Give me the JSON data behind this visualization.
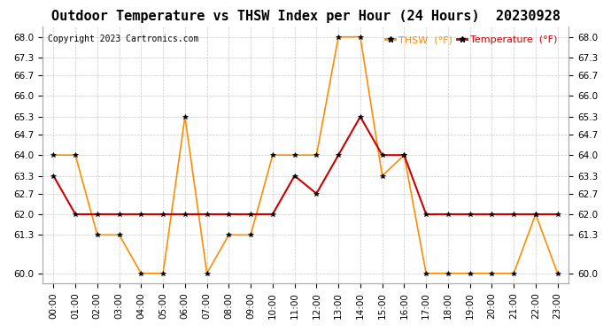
{
  "title": "Outdoor Temperature vs THSW Index per Hour (24 Hours)  20230928",
  "copyright": "Copyright 2023 Cartronics.com",
  "legend_thsw": "THSW  (°F)",
  "legend_temp": "Temperature  (°F)",
  "hours": [
    0,
    1,
    2,
    3,
    4,
    5,
    6,
    7,
    8,
    9,
    10,
    11,
    12,
    13,
    14,
    15,
    16,
    17,
    18,
    19,
    20,
    21,
    22,
    23
  ],
  "thsw": [
    64.0,
    64.0,
    61.3,
    61.3,
    60.0,
    60.0,
    65.3,
    60.0,
    61.3,
    61.3,
    64.0,
    64.0,
    64.0,
    68.0,
    68.0,
    63.3,
    64.0,
    60.0,
    60.0,
    60.0,
    60.0,
    60.0,
    62.0,
    60.0
  ],
  "temperature": [
    63.3,
    62.0,
    62.0,
    62.0,
    62.0,
    62.0,
    62.0,
    62.0,
    62.0,
    62.0,
    62.0,
    63.3,
    62.7,
    64.0,
    65.3,
    64.0,
    64.0,
    62.0,
    62.0,
    62.0,
    62.0,
    62.0,
    62.0,
    62.0
  ],
  "thsw_color": "#FF8C00",
  "temp_color": "#CC0000",
  "marker_color": "#000000",
  "ylim_min": 59.65,
  "ylim_max": 68.35,
  "yticks": [
    60.0,
    61.3,
    62.0,
    62.7,
    63.3,
    64.0,
    64.7,
    65.3,
    66.0,
    66.7,
    67.3,
    68.0
  ],
  "background_color": "#ffffff",
  "grid_color": "#c8c8c8",
  "title_fontsize": 11,
  "copyright_fontsize": 7,
  "legend_fontsize": 8,
  "tick_fontsize": 7.5
}
